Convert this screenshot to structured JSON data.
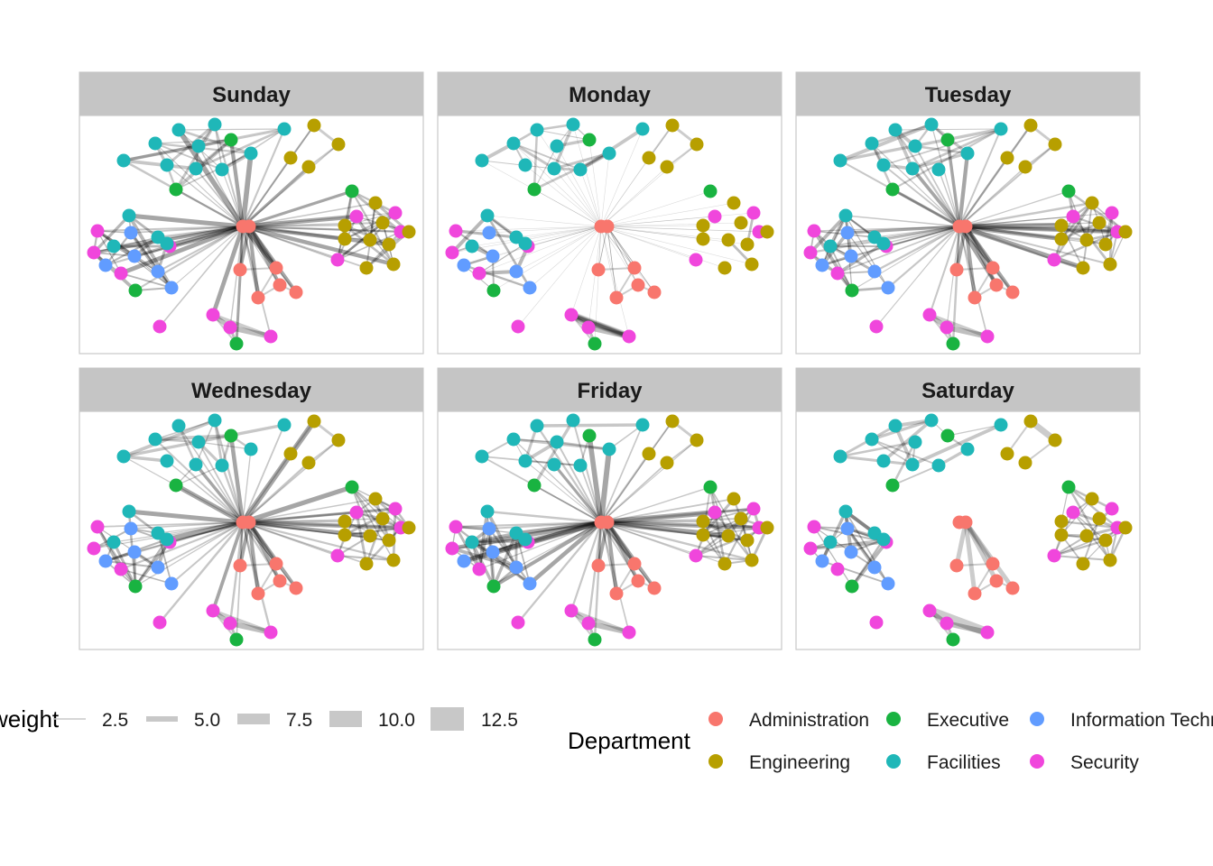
{
  "figure": {
    "panels": [
      "Sunday",
      "Monday",
      "Tuesday",
      "Wednesday",
      "Friday",
      "Saturday"
    ]
  },
  "departments": [
    {
      "name": "Administration",
      "color": "#F8766D"
    },
    {
      "name": "Executive",
      "color": "#19B341"
    },
    {
      "name": "Information Technology",
      "color": "#619CFF"
    },
    {
      "name": "Engineering",
      "color": "#B79F00"
    },
    {
      "name": "Facilities",
      "color": "#1FB7B8"
    },
    {
      "name": "Security",
      "color": "#F046DC"
    }
  ],
  "legend": {
    "weight_title": "weight",
    "weight_labels": [
      "2.5",
      "5.0",
      "7.5",
      "10.0",
      "12.5"
    ],
    "department_title": "Department",
    "department_labels": [
      "Administration",
      "Executive",
      "Information Technology",
      "Engineering",
      "Facilities",
      "Security"
    ]
  },
  "chart_data": {
    "type": "network",
    "facets": [
      "Sunday",
      "Monday",
      "Tuesday",
      "Wednesday",
      "Friday",
      "Saturday"
    ],
    "edge_weight_legend": [
      2.5,
      5.0,
      7.5,
      10.0,
      12.5
    ],
    "node_color_variable": "Department",
    "node_categories": [
      "Administration",
      "Engineering",
      "Executive",
      "Facilities",
      "Information Technology",
      "Security"
    ]
  }
}
